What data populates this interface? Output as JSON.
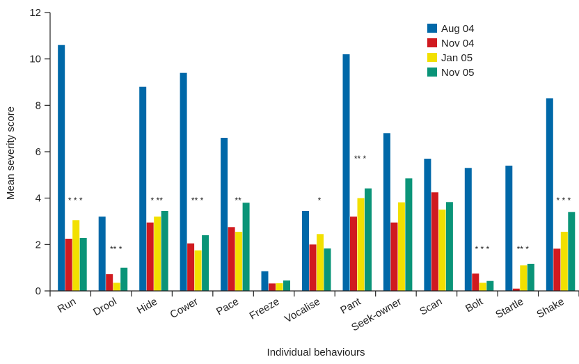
{
  "chart_data": {
    "type": "bar",
    "xlabel": "Individual behaviours",
    "ylabel": "Mean severity score",
    "ylim": [
      0,
      12
    ],
    "yticks": [
      "0",
      "2",
      "4",
      "6",
      "8",
      "10",
      "12"
    ],
    "grid": false,
    "legend_position": "top-right",
    "categories": [
      "Run",
      "Drool",
      "Hide",
      "Cower",
      "Pace",
      "Freeze",
      "Vocalise",
      "Pant",
      "Seek-owner",
      "Scan",
      "Bolt",
      "Startle",
      "Shake"
    ],
    "series": [
      {
        "name": "Aug 04",
        "color": "#0068a8",
        "values": [
          10.6,
          3.2,
          8.8,
          9.4,
          6.6,
          0.85,
          3.45,
          10.2,
          6.8,
          5.7,
          5.3,
          5.4,
          8.3
        ]
      },
      {
        "name": "Nov 04",
        "color": "#d01a20",
        "values": [
          2.25,
          0.72,
          2.95,
          2.05,
          2.75,
          0.32,
          2.0,
          3.2,
          2.95,
          4.25,
          0.75,
          0.1,
          1.82
        ]
      },
      {
        "name": "Jan 05",
        "color": "#f2e000",
        "values": [
          3.05,
          0.35,
          3.2,
          1.75,
          2.55,
          0.33,
          2.45,
          4.0,
          3.82,
          3.5,
          0.35,
          1.1,
          2.55
        ]
      },
      {
        "name": "Nov 05",
        "color": "#0a9478",
        "values": [
          2.28,
          1.0,
          3.45,
          2.4,
          3.8,
          0.45,
          1.83,
          4.42,
          4.85,
          3.83,
          0.43,
          1.17,
          3.4
        ]
      }
    ],
    "annotations": [
      {
        "category": "Run",
        "text": "* * *",
        "y": 3.9
      },
      {
        "category": "Drool",
        "text": "** *",
        "y": 1.8
      },
      {
        "category": "Hide",
        "text": "* **",
        "y": 3.9
      },
      {
        "category": "Cower",
        "text": "** *",
        "y": 3.9
      },
      {
        "category": "Pace",
        "text": "**",
        "y": 3.9
      },
      {
        "category": "Vocalise",
        "text": "*",
        "y": 3.9
      },
      {
        "category": "Pant",
        "text": "** *",
        "y": 5.7
      },
      {
        "category": "Bolt",
        "text": "* * *",
        "y": 1.8
      },
      {
        "category": "Startle",
        "text": "** *",
        "y": 1.8
      },
      {
        "category": "Shake",
        "text": "* * *",
        "y": 3.9
      }
    ]
  }
}
